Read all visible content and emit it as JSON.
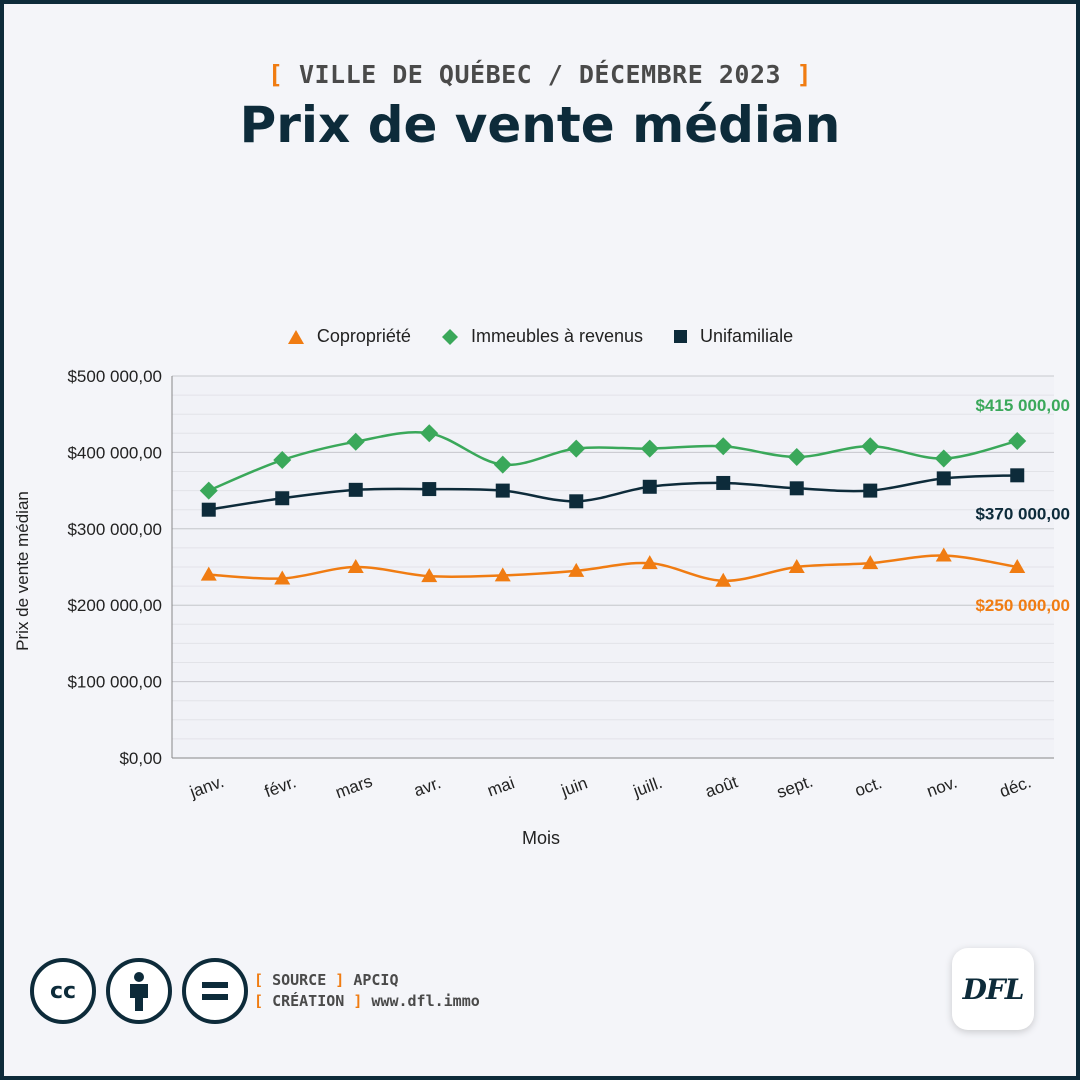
{
  "header": {
    "kicker_open": "[",
    "kicker": "VILLE DE QUÉBEC / DÉCEMBRE 2023",
    "kicker_close": "]",
    "title": "Prix de vente médian"
  },
  "colors": {
    "copropriete": "#f07c12",
    "immeubles": "#3aa85a",
    "unifamiliale": "#0d2b3a",
    "background": "#f4f5f9",
    "frame": "#0d2b3a"
  },
  "chart_data": {
    "type": "line",
    "title": "Prix de vente médian",
    "xlabel": "Mois",
    "ylabel": "Prix de vente médian",
    "categories": [
      "janv.",
      "févr.",
      "mars",
      "avr.",
      "mai",
      "juin",
      "juill.",
      "août",
      "sept.",
      "oct.",
      "nov.",
      "déc."
    ],
    "ylim": [
      0,
      500000
    ],
    "yticks": [
      0,
      100000,
      200000,
      300000,
      400000,
      500000
    ],
    "ytick_labels": [
      "$0,00",
      "$100 000,00",
      "$200 000,00",
      "$300 000,00",
      "$400 000,00",
      "$500 000,00"
    ],
    "grid": true,
    "legend_position": "top",
    "series": [
      {
        "name": "Copropriété",
        "marker": "triangle",
        "color": "#f07c12",
        "values": [
          240000,
          235000,
          250000,
          238000,
          239000,
          245000,
          255000,
          232000,
          250000,
          255000,
          265000,
          250000
        ],
        "end_label": "$250 000,00"
      },
      {
        "name": "Immeubles à revenus",
        "marker": "diamond",
        "color": "#3aa85a",
        "values": [
          350000,
          390000,
          414000,
          425000,
          384000,
          405000,
          405000,
          408000,
          394000,
          408000,
          392000,
          415000
        ],
        "end_label": "$415 000,00"
      },
      {
        "name": "Unifamiliale",
        "marker": "square",
        "color": "#0d2b3a",
        "values": [
          325000,
          340000,
          351000,
          352000,
          350000,
          336000,
          355000,
          360000,
          353000,
          350000,
          366000,
          370000
        ],
        "end_label": "$370 000,00"
      }
    ]
  },
  "footer": {
    "cc_label": "cc",
    "source_open": "[",
    "source_label": "SOURCE",
    "source_close": "]",
    "source_value": "APCIQ",
    "creation_open": "[",
    "creation_label": "CRÉATION",
    "creation_close": "]",
    "creation_value": "www.dfl.immo",
    "logo_text": "DFL"
  }
}
